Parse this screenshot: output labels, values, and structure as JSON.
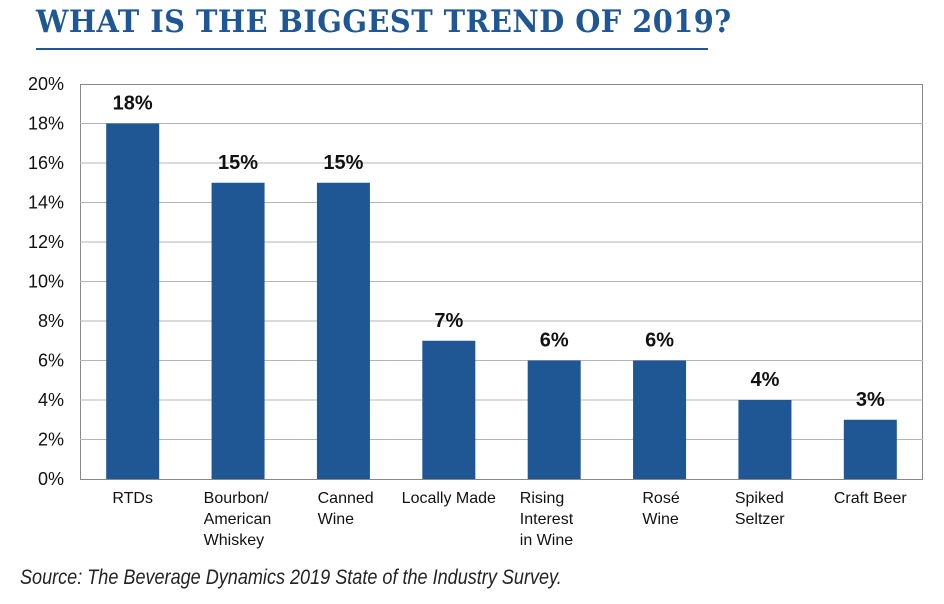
{
  "header": {
    "title": "WHAT IS THE BIGGEST TREND OF 2019?"
  },
  "footer": {
    "source": "Source: The Beverage Dynamics 2019 State of the Industry Survey."
  },
  "colors": {
    "bar": "#1f5694",
    "title": "#1f5694",
    "grid": "#b5b5b5"
  },
  "chart_data": {
    "type": "bar",
    "categories": [
      [
        "RTDs"
      ],
      [
        "Bourbon/",
        "American",
        "Whiskey"
      ],
      [
        "Canned",
        "Wine"
      ],
      [
        "Locally Made"
      ],
      [
        "Rising",
        "Interest",
        "in Wine"
      ],
      [
        "Rosé",
        "Wine"
      ],
      [
        "Spiked",
        "Seltzer"
      ],
      [
        "Craft Beer"
      ]
    ],
    "values": [
      18,
      15,
      15,
      7,
      6,
      6,
      4,
      3
    ],
    "data_labels": [
      "18%",
      "15%",
      "15%",
      "7%",
      "6%",
      "6%",
      "4%",
      "3%"
    ],
    "ylim": [
      0,
      20
    ],
    "yticks": [
      "0%",
      "2%",
      "4%",
      "6%",
      "8%",
      "10%",
      "12%",
      "14%",
      "16%",
      "18%",
      "20%"
    ],
    "grid": true,
    "xlabel": "",
    "ylabel": ""
  }
}
